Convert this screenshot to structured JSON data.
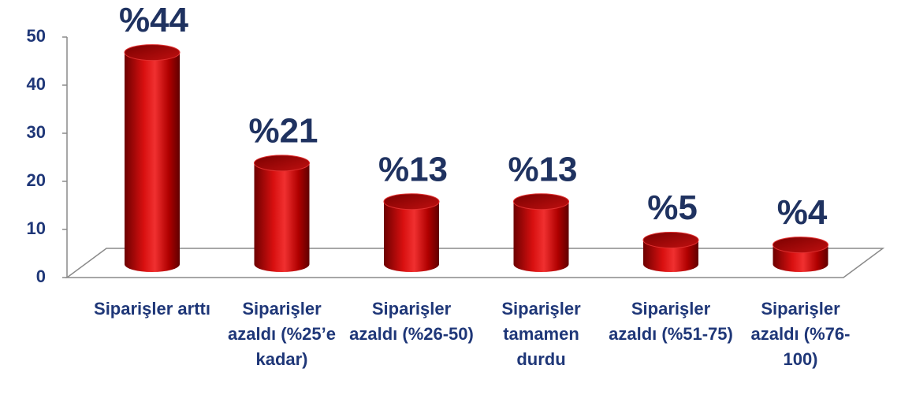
{
  "chart_data": {
    "type": "bar",
    "categories": [
      "Siparişler arttı",
      "Siparişler azaldı (%25’e kadar)",
      "Siparişler azaldı (%26-50)",
      "Siparişler tamamen durdu",
      "Siparişler azaldı (%51-75)",
      "Siparişler azaldı (%76-100)"
    ],
    "values": [
      44,
      21,
      13,
      13,
      5,
      4
    ],
    "value_labels": [
      "%44",
      "%21",
      "%13",
      "%13",
      "%5",
      "%4"
    ],
    "color": "#c00000",
    "ylim": [
      0,
      50
    ],
    "yticks": [
      0,
      10,
      20,
      30,
      40,
      50
    ]
  }
}
